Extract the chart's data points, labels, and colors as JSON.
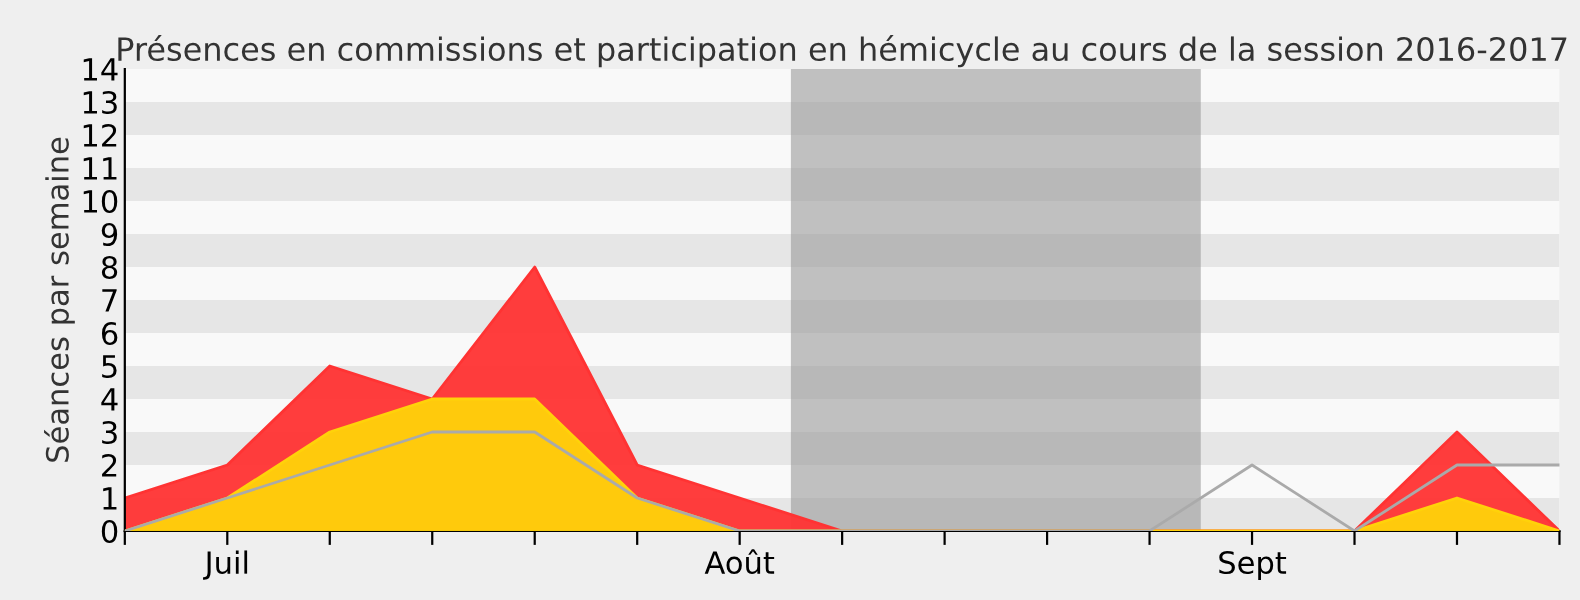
{
  "chart_data": {
    "type": "area",
    "title": "Présences en commissions et participation en hémicycle au cours de la session 2016-2017",
    "ylabel": "Séances par semaine",
    "categories": [
      null,
      "Juil",
      null,
      null,
      null,
      null,
      "Août",
      null,
      null,
      null,
      null,
      "Sept",
      null,
      null,
      null
    ],
    "series": [
      {
        "color": "#ff3333",
        "values": [
          1,
          2,
          5,
          4,
          8,
          2,
          1,
          0,
          0,
          0,
          0,
          0,
          0,
          3,
          0
        ]
      },
      {
        "color": "#ffd20a",
        "values": [
          0,
          1,
          3,
          4,
          4,
          1,
          0,
          0,
          0,
          0,
          0,
          0,
          0,
          1,
          0
        ]
      },
      {
        "type": "line",
        "color": "#aaaaaa",
        "values": [
          0,
          1,
          2,
          3,
          3,
          1,
          0,
          0,
          0,
          0,
          0,
          2,
          0,
          2,
          2
        ]
      }
    ],
    "ylim": [
      0,
      14
    ],
    "yticks": [
      0,
      1,
      2,
      3,
      4,
      5,
      6,
      7,
      8,
      9,
      10,
      11,
      12,
      13,
      14
    ]
  }
}
